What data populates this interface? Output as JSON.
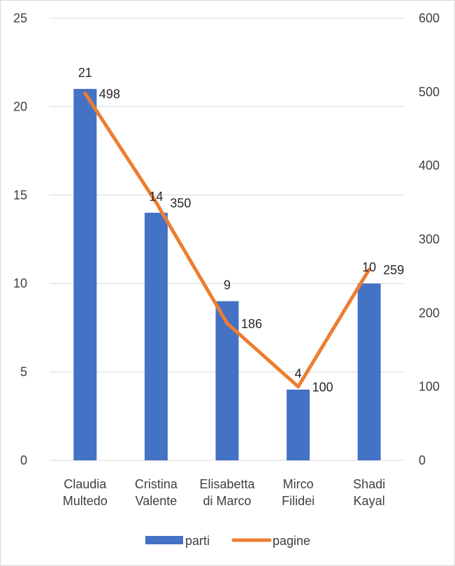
{
  "chart_data": {
    "type": "bar",
    "categories": [
      [
        "Claudia",
        "Multedo"
      ],
      [
        "Cristina",
        "Valente"
      ],
      [
        "Elisabetta",
        "di Marco"
      ],
      [
        "Mirco",
        "Filidei"
      ],
      [
        "Shadi",
        "Kayal"
      ]
    ],
    "series": [
      {
        "name": "parti",
        "type": "bar",
        "axis": "left",
        "color": "#4472C4",
        "values": [
          21,
          14,
          9,
          4,
          10
        ]
      },
      {
        "name": "pagine",
        "type": "line",
        "axis": "right",
        "color": "#ED7D31",
        "values": [
          498,
          350,
          186,
          100,
          259
        ]
      }
    ],
    "y_left": {
      "min": 0,
      "max": 25,
      "ticks": [
        "0",
        "5",
        "10",
        "15",
        "20",
        "25"
      ]
    },
    "y_right": {
      "min": 0,
      "max": 600,
      "ticks": [
        "0",
        "100",
        "200",
        "300",
        "400",
        "500",
        "600"
      ]
    },
    "grid": true,
    "legend_position": "bottom",
    "title": "",
    "xlabel": "",
    "ylabel": ""
  }
}
